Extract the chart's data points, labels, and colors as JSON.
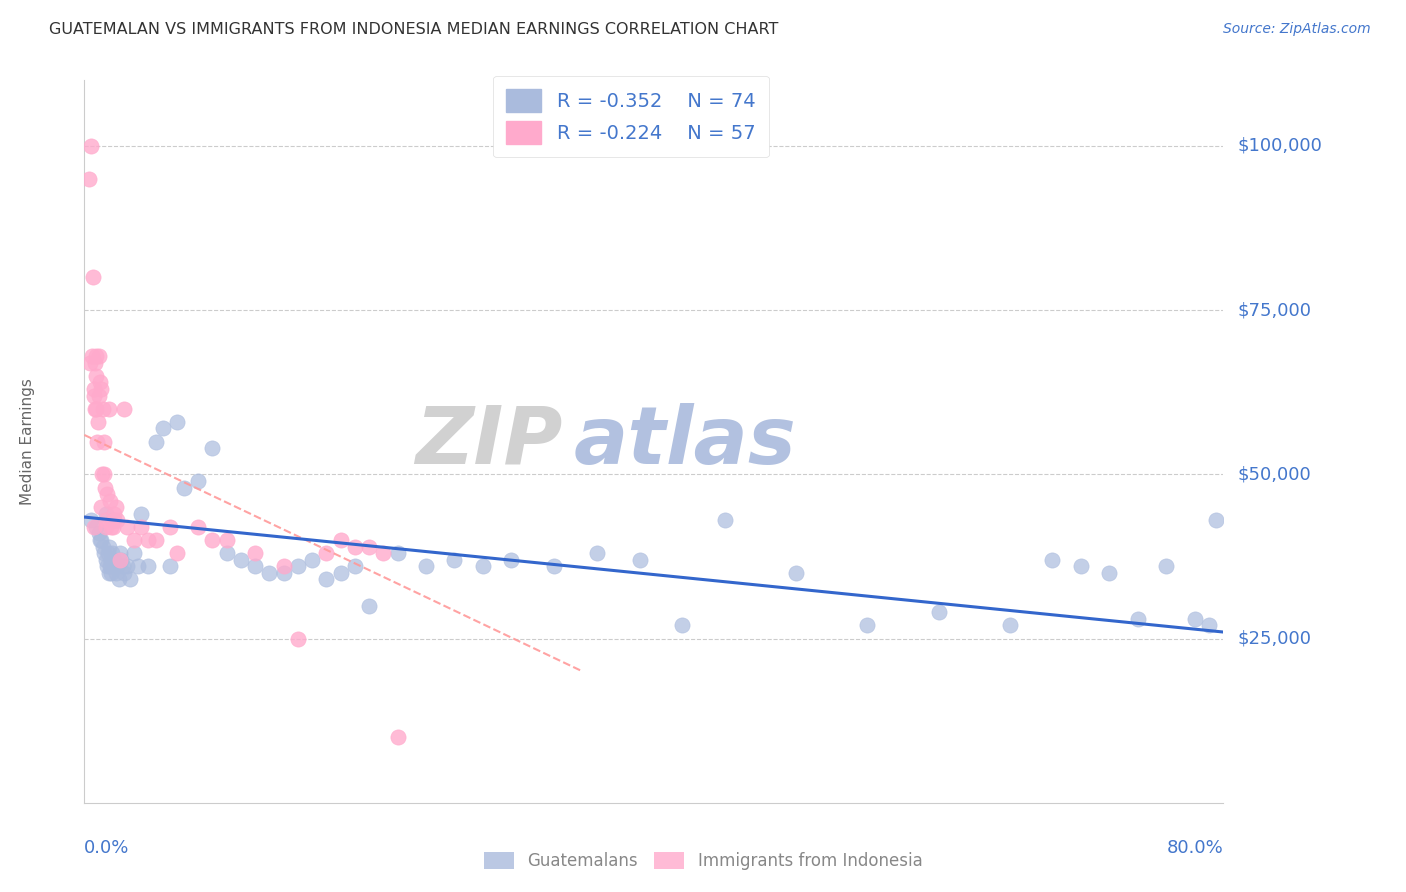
{
  "title": "GUATEMALAN VS IMMIGRANTS FROM INDONESIA MEDIAN EARNINGS CORRELATION CHART",
  "source": "Source: ZipAtlas.com",
  "ylabel": "Median Earnings",
  "y_ticks": [
    25000,
    50000,
    75000,
    100000
  ],
  "y_tick_labels": [
    "$25,000",
    "$50,000",
    "$75,000",
    "$100,000"
  ],
  "xlim": [
    0.0,
    80.0
  ],
  "ylim": [
    0,
    110000
  ],
  "blue_R": "-0.352",
  "blue_N": "74",
  "pink_R": "-0.224",
  "pink_N": "57",
  "blue_dot_color": "#AABBDD",
  "pink_dot_color": "#FFAACC",
  "blue_line_color": "#3366CC",
  "pink_line_color": "#FF9999",
  "axis_color": "#4477CC",
  "title_color": "#333333",
  "source_color": "#4477CC",
  "watermark_ZIP_color": "#CCCCCC",
  "watermark_atlas_color": "#AABBDD",
  "grid_color": "#CCCCCC",
  "legend_text_color": "#4477CC",
  "bottom_legend_color": "#888888",
  "blue_scatter_x": [
    0.5,
    0.8,
    1.0,
    1.2,
    1.3,
    1.4,
    1.5,
    1.55,
    1.6,
    1.65,
    1.7,
    1.75,
    1.8,
    1.85,
    1.9,
    1.95,
    2.0,
    2.05,
    2.1,
    2.15,
    2.2,
    2.3,
    2.4,
    2.5,
    2.6,
    2.7,
    2.8,
    3.0,
    3.2,
    3.5,
    3.8,
    4.0,
    4.5,
    5.0,
    5.5,
    6.0,
    7.0,
    8.0,
    9.0,
    10.0,
    11.0,
    12.0,
    13.0,
    14.0,
    15.0,
    16.0,
    17.0,
    18.0,
    19.0,
    20.0,
    22.0,
    24.0,
    26.0,
    28.0,
    30.0,
    33.0,
    36.0,
    39.0,
    42.0,
    45.0,
    50.0,
    55.0,
    60.0,
    65.0,
    68.0,
    70.0,
    72.0,
    74.0,
    76.0,
    78.0,
    79.0,
    79.5,
    1.1,
    6.5
  ],
  "blue_scatter_y": [
    43000,
    42000,
    41000,
    40000,
    39000,
    38000,
    37000,
    44000,
    36000,
    38000,
    35000,
    39000,
    36000,
    37000,
    35000,
    38000,
    43000,
    36000,
    37000,
    36000,
    35000,
    36000,
    34000,
    38000,
    37000,
    36000,
    35000,
    36000,
    34000,
    38000,
    36000,
    44000,
    36000,
    55000,
    57000,
    36000,
    48000,
    49000,
    54000,
    38000,
    37000,
    36000,
    35000,
    35000,
    36000,
    37000,
    34000,
    35000,
    36000,
    30000,
    38000,
    36000,
    37000,
    36000,
    37000,
    36000,
    38000,
    37000,
    27000,
    43000,
    35000,
    27000,
    29000,
    27000,
    37000,
    36000,
    35000,
    28000,
    36000,
    28000,
    27000,
    43000,
    40000,
    58000
  ],
  "pink_scatter_x": [
    0.3,
    0.4,
    0.5,
    0.6,
    0.65,
    0.7,
    0.75,
    0.8,
    0.82,
    0.85,
    0.9,
    0.95,
    1.0,
    1.05,
    1.1,
    1.15,
    1.2,
    1.3,
    1.4,
    1.5,
    1.55,
    1.6,
    1.7,
    1.8,
    1.9,
    2.0,
    2.1,
    2.2,
    2.3,
    2.5,
    2.8,
    3.0,
    3.5,
    4.0,
    5.0,
    6.0,
    8.0,
    10.0,
    12.0,
    15.0,
    18.0,
    20.0,
    22.0,
    1.25,
    1.35,
    0.55,
    0.72,
    1.45,
    2.05,
    4.5,
    6.5,
    9.0,
    14.0,
    17.0,
    19.0,
    21.0,
    0.68
  ],
  "pink_scatter_y": [
    95000,
    67000,
    100000,
    80000,
    42000,
    62000,
    67000,
    65000,
    68000,
    60000,
    55000,
    58000,
    68000,
    62000,
    64000,
    63000,
    45000,
    60000,
    50000,
    43000,
    42000,
    47000,
    60000,
    46000,
    42000,
    42000,
    43000,
    45000,
    43000,
    37000,
    60000,
    42000,
    40000,
    42000,
    40000,
    42000,
    42000,
    40000,
    38000,
    25000,
    40000,
    39000,
    10000,
    50000,
    55000,
    68000,
    60000,
    48000,
    44000,
    40000,
    38000,
    40000,
    36000,
    38000,
    39000,
    38000,
    63000
  ],
  "blue_trend": [
    0.0,
    43500,
    80.0,
    26000
  ],
  "pink_trend": [
    0.0,
    56000,
    35.0,
    20000
  ]
}
